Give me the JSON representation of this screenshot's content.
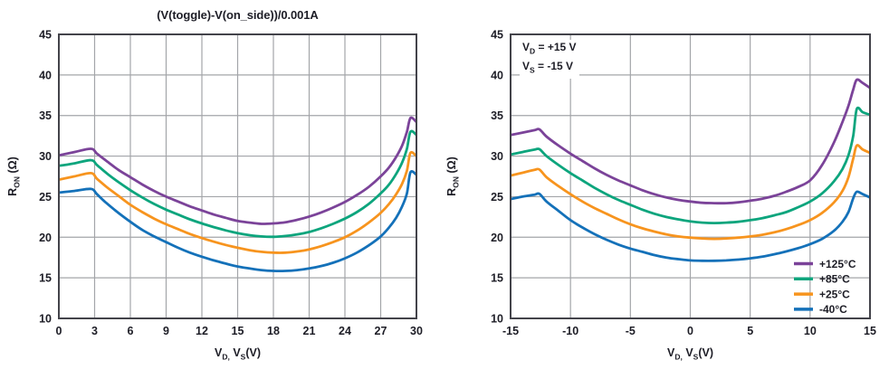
{
  "styles": {
    "background": "#ffffff",
    "grid_color": "#a3a5a9",
    "frame_color": "#43434a",
    "text_color": "#1d1d26"
  },
  "labels": {
    "ylabel": {
      "base": "R",
      "sub": "ON",
      "unit": " (Ω)"
    },
    "xlabel": {
      "v1": "V",
      "sub1": "D,",
      "mid": " V",
      "sub2": "S",
      "unit": "(V)"
    },
    "annotation": {
      "l1_pre": "V",
      "l1_sub": "D",
      "l1_post": " = +15 V",
      "l2_pre": "V",
      "l2_sub": "S",
      "l2_post": " = -15 V"
    }
  },
  "chart_data": [
    {
      "type": "line",
      "title": "(V(toggle)-V(on_side))/0.001A",
      "xlabel": "V_D, V_S (V)",
      "ylabel": "R_ON (Ω)",
      "xlim": [
        0,
        30
      ],
      "ylim": [
        10,
        45
      ],
      "xticks": [
        0,
        3,
        6,
        9,
        12,
        15,
        18,
        21,
        24,
        27,
        30
      ],
      "yticks": [
        10,
        15,
        20,
        25,
        30,
        35,
        40,
        45
      ],
      "grid": true,
      "legend": false,
      "series": [
        {
          "name": "+125°C",
          "color": "#7b4399",
          "x": [
            0,
            1.3,
            2.7,
            3.2,
            4,
            5,
            6,
            7,
            8,
            9,
            10,
            11,
            12,
            13,
            14,
            15,
            16,
            17,
            18,
            19,
            20,
            21,
            22,
            23,
            24,
            25,
            26,
            27,
            27.7,
            28.3,
            28.8,
            29.2,
            29.5,
            30
          ],
          "y": [
            30.1,
            30.5,
            30.9,
            30.3,
            29.4,
            28.3,
            27.4,
            26.5,
            25.7,
            25.0,
            24.4,
            23.8,
            23.3,
            22.8,
            22.4,
            22.0,
            21.8,
            21.65,
            21.7,
            21.85,
            22.15,
            22.55,
            23.05,
            23.65,
            24.35,
            25.2,
            26.2,
            27.5,
            28.6,
            29.9,
            31.3,
            33.0,
            34.7,
            34.2
          ]
        },
        {
          "name": "+85°C",
          "color": "#0da57d",
          "x": [
            0,
            1.3,
            2.7,
            3.2,
            4,
            5,
            6,
            7,
            8,
            9,
            10,
            11,
            12,
            13,
            14,
            15,
            16,
            17,
            18,
            19,
            20,
            21,
            22,
            23,
            24,
            25,
            26,
            27,
            27.7,
            28.3,
            28.8,
            29.2,
            29.5,
            30
          ],
          "y": [
            28.8,
            29.1,
            29.5,
            28.9,
            27.9,
            26.8,
            25.8,
            24.9,
            24.1,
            23.4,
            22.8,
            22.2,
            21.7,
            21.25,
            20.85,
            20.5,
            20.25,
            20.1,
            20.05,
            20.15,
            20.35,
            20.65,
            21.1,
            21.65,
            22.3,
            23.1,
            24.1,
            25.4,
            26.5,
            27.8,
            29.2,
            30.9,
            33.0,
            32.6
          ]
        },
        {
          "name": "+25°C",
          "color": "#f7941e",
          "x": [
            0,
            1.3,
            2.7,
            3.2,
            4,
            5,
            6,
            7,
            8,
            9,
            10,
            11,
            12,
            13,
            14,
            15,
            16,
            17,
            18,
            19,
            20,
            21,
            22,
            23,
            24,
            25,
            26,
            27,
            27.7,
            28.3,
            28.8,
            29.2,
            29.5,
            30
          ],
          "y": [
            27.1,
            27.5,
            27.9,
            27.2,
            26.2,
            25.1,
            24.0,
            23.1,
            22.3,
            21.6,
            21.0,
            20.4,
            19.9,
            19.45,
            19.05,
            18.7,
            18.4,
            18.2,
            18.1,
            18.1,
            18.25,
            18.5,
            18.9,
            19.4,
            20.0,
            20.8,
            21.8,
            23.0,
            24.1,
            25.3,
            26.6,
            28.2,
            30.4,
            30.0
          ]
        },
        {
          "name": "-40°C",
          "color": "#1471b9",
          "x": [
            0,
            1.3,
            2.7,
            3.2,
            4,
            5,
            6,
            7,
            8,
            9,
            10,
            11,
            12,
            13,
            14,
            15,
            16,
            17,
            18,
            19,
            20,
            21,
            22,
            23,
            24,
            25,
            26,
            27,
            27.7,
            28.3,
            28.8,
            29.2,
            29.5,
            30
          ],
          "y": [
            25.5,
            25.7,
            25.95,
            25.3,
            24.2,
            23.0,
            21.9,
            20.9,
            20.1,
            19.4,
            18.7,
            18.1,
            17.6,
            17.15,
            16.75,
            16.4,
            16.15,
            15.95,
            15.85,
            15.85,
            15.95,
            16.15,
            16.45,
            16.85,
            17.4,
            18.1,
            19.0,
            20.1,
            21.2,
            22.4,
            23.8,
            25.4,
            28.0,
            27.7
          ]
        }
      ]
    },
    {
      "type": "line",
      "title": "",
      "annotations": [
        "V_D = +15 V",
        "V_S = -15 V"
      ],
      "xlabel": "V_D, V_S (V)",
      "ylabel": "R_ON (Ω)",
      "xlim": [
        -15,
        15
      ],
      "ylim": [
        10,
        45
      ],
      "xticks": [
        -15,
        -10,
        -5,
        0,
        5,
        10,
        15
      ],
      "yticks": [
        10,
        15,
        20,
        25,
        30,
        35,
        40,
        45
      ],
      "grid": true,
      "legend": true,
      "legend_position": "lower right",
      "series": [
        {
          "name": "+125°C",
          "color": "#7b4399",
          "x": [
            -15,
            -14,
            -13,
            -12.6,
            -12,
            -11,
            -10,
            -9,
            -8,
            -7,
            -6,
            -5,
            -4,
            -3,
            -2,
            -1,
            0,
            1,
            2,
            3,
            4,
            5,
            6,
            7,
            8,
            9,
            10,
            11,
            12,
            12.7,
            13.2,
            13.6,
            13.9,
            14.4,
            15
          ],
          "y": [
            32.6,
            32.9,
            33.2,
            33.3,
            32.4,
            31.3,
            30.3,
            29.4,
            28.5,
            27.7,
            27.0,
            26.4,
            25.8,
            25.3,
            24.9,
            24.6,
            24.4,
            24.25,
            24.2,
            24.2,
            24.3,
            24.5,
            24.75,
            25.1,
            25.6,
            26.2,
            27.0,
            28.9,
            31.7,
            34.2,
            36.2,
            38.2,
            39.4,
            39.0,
            38.4
          ]
        },
        {
          "name": "+85°C",
          "color": "#0da57d",
          "x": [
            -15,
            -14,
            -13,
            -12.6,
            -12,
            -11,
            -10,
            -9,
            -8,
            -7,
            -6,
            -5,
            -4,
            -3,
            -2,
            -1,
            0,
            1,
            2,
            3,
            4,
            5,
            6,
            7,
            8,
            9,
            10,
            11,
            12,
            12.7,
            13.2,
            13.6,
            13.9,
            14.4,
            15
          ],
          "y": [
            30.2,
            30.5,
            30.8,
            30.85,
            30.0,
            28.9,
            27.9,
            27.0,
            26.1,
            25.3,
            24.6,
            24.0,
            23.4,
            22.9,
            22.5,
            22.2,
            21.95,
            21.8,
            21.75,
            21.8,
            21.9,
            22.1,
            22.35,
            22.7,
            23.1,
            23.7,
            24.4,
            25.4,
            26.9,
            28.4,
            30.1,
            32.5,
            35.8,
            35.4,
            35.1
          ]
        },
        {
          "name": "+25°C",
          "color": "#f7941e",
          "x": [
            -15,
            -14,
            -13,
            -12.6,
            -12,
            -11,
            -10,
            -9,
            -8,
            -7,
            -6,
            -5,
            -4,
            -3,
            -2,
            -1,
            0,
            1,
            2,
            3,
            4,
            5,
            6,
            7,
            8,
            9,
            10,
            11,
            12,
            12.7,
            13.2,
            13.6,
            13.9,
            14.4,
            15
          ],
          "y": [
            27.6,
            27.95,
            28.3,
            28.35,
            27.4,
            26.3,
            25.3,
            24.4,
            23.6,
            22.9,
            22.2,
            21.6,
            21.1,
            20.7,
            20.35,
            20.1,
            19.95,
            19.85,
            19.8,
            19.85,
            19.95,
            20.1,
            20.3,
            20.6,
            21.0,
            21.5,
            22.1,
            23.0,
            24.3,
            25.7,
            27.4,
            29.7,
            31.3,
            30.8,
            30.4
          ]
        },
        {
          "name": "-40°C",
          "color": "#1471b9",
          "x": [
            -15,
            -14,
            -13,
            -12.6,
            -12,
            -11,
            -10,
            -9,
            -8,
            -7,
            -6,
            -5,
            -4,
            -3,
            -2,
            -1,
            0,
            1,
            2,
            3,
            4,
            5,
            6,
            7,
            8,
            9,
            10,
            11,
            12,
            12.7,
            13.2,
            13.6,
            13.9,
            14.4,
            15
          ],
          "y": [
            24.7,
            25.0,
            25.25,
            25.35,
            24.4,
            23.25,
            22.1,
            21.2,
            20.4,
            19.7,
            19.1,
            18.6,
            18.2,
            17.8,
            17.5,
            17.3,
            17.15,
            17.1,
            17.1,
            17.15,
            17.25,
            17.4,
            17.6,
            17.9,
            18.25,
            18.65,
            19.15,
            19.8,
            20.8,
            21.9,
            23.1,
            24.8,
            25.6,
            25.3,
            24.9
          ]
        }
      ]
    }
  ]
}
